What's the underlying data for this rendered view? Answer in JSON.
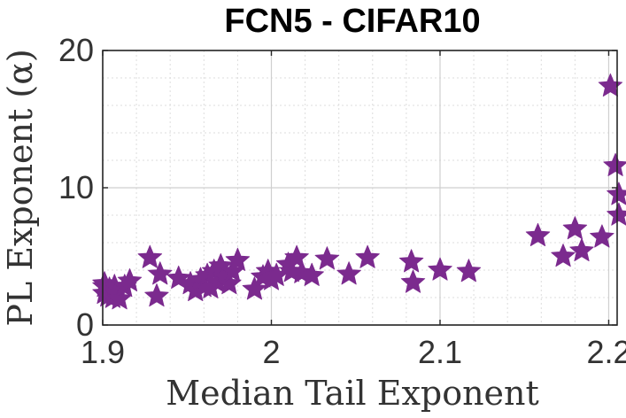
{
  "chart_data": {
    "type": "scatter",
    "title": "FCN5 - CIFAR10",
    "xlabel": "Median Tail Exponent",
    "ylabel": "PL Exponent (α)",
    "xlim": [
      1.9,
      2.205
    ],
    "ylim": [
      0,
      20
    ],
    "xticks": [
      "1.9",
      "2",
      "2.1",
      "2.2"
    ],
    "xtick_values": [
      1.9,
      2.0,
      2.1,
      2.2
    ],
    "yticks": [
      "0",
      "10",
      "20"
    ],
    "ytick_values": [
      0,
      10,
      20
    ],
    "grid": "on",
    "marker": "star-icon",
    "marker_color": "#7b2a8e",
    "points": [
      {
        "x": 1.895,
        "y": 2.8
      },
      {
        "x": 1.9,
        "y": 2.3
      },
      {
        "x": 1.901,
        "y": 3.0
      },
      {
        "x": 1.903,
        "y": 2.1
      },
      {
        "x": 1.904,
        "y": 2.6
      },
      {
        "x": 1.906,
        "y": 2.0
      },
      {
        "x": 1.907,
        "y": 2.8
      },
      {
        "x": 1.908,
        "y": 2.3
      },
      {
        "x": 1.91,
        "y": 1.9
      },
      {
        "x": 1.913,
        "y": 2.8
      },
      {
        "x": 1.916,
        "y": 3.2
      },
      {
        "x": 1.928,
        "y": 4.9
      },
      {
        "x": 1.932,
        "y": 2.1
      },
      {
        "x": 1.934,
        "y": 3.7
      },
      {
        "x": 1.945,
        "y": 3.4
      },
      {
        "x": 1.952,
        "y": 3.0
      },
      {
        "x": 1.955,
        "y": 2.5
      },
      {
        "x": 1.958,
        "y": 3.3
      },
      {
        "x": 1.96,
        "y": 2.8
      },
      {
        "x": 1.962,
        "y": 3.6
      },
      {
        "x": 1.964,
        "y": 2.7
      },
      {
        "x": 1.966,
        "y": 3.9
      },
      {
        "x": 1.968,
        "y": 3.1
      },
      {
        "x": 1.97,
        "y": 4.3
      },
      {
        "x": 1.972,
        "y": 3.5
      },
      {
        "x": 1.975,
        "y": 3.0
      },
      {
        "x": 1.977,
        "y": 3.9
      },
      {
        "x": 1.98,
        "y": 4.7
      },
      {
        "x": 1.99,
        "y": 2.6
      },
      {
        "x": 1.995,
        "y": 3.5
      },
      {
        "x": 1.998,
        "y": 3.9
      },
      {
        "x": 2.0,
        "y": 3.3
      },
      {
        "x": 2.003,
        "y": 3.6
      },
      {
        "x": 2.01,
        "y": 4.4
      },
      {
        "x": 2.012,
        "y": 3.9
      },
      {
        "x": 2.015,
        "y": 4.9
      },
      {
        "x": 2.018,
        "y": 3.8
      },
      {
        "x": 2.024,
        "y": 3.6
      },
      {
        "x": 2.033,
        "y": 4.8
      },
      {
        "x": 2.046,
        "y": 3.7
      },
      {
        "x": 2.057,
        "y": 4.9
      },
      {
        "x": 2.083,
        "y": 4.6
      },
      {
        "x": 2.084,
        "y": 3.1
      },
      {
        "x": 2.1,
        "y": 4.0
      },
      {
        "x": 2.117,
        "y": 3.9
      },
      {
        "x": 2.158,
        "y": 6.5
      },
      {
        "x": 2.173,
        "y": 5.0
      },
      {
        "x": 2.18,
        "y": 7.0
      },
      {
        "x": 2.184,
        "y": 5.4
      },
      {
        "x": 2.196,
        "y": 6.4
      },
      {
        "x": 2.201,
        "y": 17.4
      },
      {
        "x": 2.204,
        "y": 11.6
      },
      {
        "x": 2.206,
        "y": 9.5
      },
      {
        "x": 2.206,
        "y": 8.0
      }
    ]
  }
}
